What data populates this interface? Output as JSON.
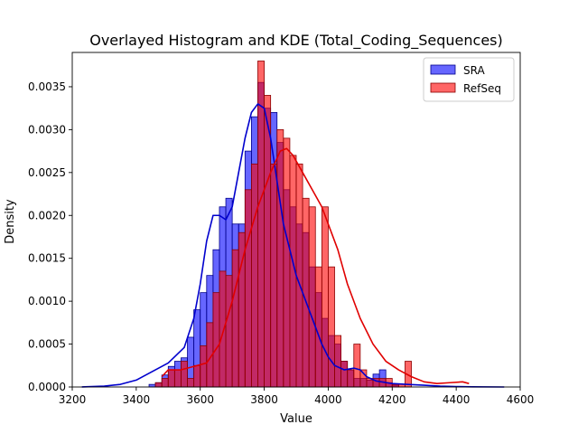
{
  "chart_data": {
    "type": "histogram",
    "title": "Overlayed Histogram and KDE (Total_Coding_Sequences)",
    "xlabel": "Value",
    "ylabel": "Density",
    "xlim": [
      3200,
      4600
    ],
    "ylim": [
      0,
      0.0039
    ],
    "xticks": [
      3200,
      3400,
      3600,
      3800,
      4000,
      4200,
      4400,
      4600
    ],
    "yticks": [
      0.0,
      0.0005,
      0.001,
      0.0015,
      0.002,
      0.0025,
      0.003
    ],
    "ytick_labels": [
      "0.0000",
      "0.0005",
      "0.0010",
      "0.0015",
      "0.0020",
      "0.0025",
      "0.0030",
      "0.0035"
    ],
    "yticks_all": [
      0.0,
      0.0005,
      0.001,
      0.0015,
      0.002,
      0.0025,
      0.003,
      0.0035
    ],
    "legend_position": "top-right",
    "series": [
      {
        "name": "SRA",
        "color": "#0000ff",
        "edge_color": "#00008b",
        "kde_color": "#0000cd",
        "bin_start": 3440,
        "bin_width": 20,
        "densities": [
          3e-05,
          5e-05,
          0.00014,
          0.00024,
          0.0003,
          0.00034,
          0.00058,
          0.0009,
          0.0011,
          0.0013,
          0.0016,
          0.0021,
          0.0022,
          0.0019,
          0.0019,
          0.00275,
          0.00315,
          0.00355,
          0.00325,
          0.0032,
          0.00285,
          0.0023,
          0.0021,
          0.0019,
          0.0018,
          0.0014,
          0.0011,
          0.0008,
          0.0006,
          0.0005,
          0.0003,
          0.0002,
          0.0001,
          0.0001,
          8e-05,
          0.00015,
          0.0002,
          5e-05,
          2e-05
        ],
        "kde": {
          "x": [
            3230,
            3300,
            3350,
            3400,
            3450,
            3500,
            3550,
            3580,
            3600,
            3620,
            3640,
            3660,
            3680,
            3700,
            3720,
            3740,
            3760,
            3780,
            3800,
            3820,
            3840,
            3860,
            3880,
            3900,
            3920,
            3940,
            3960,
            3980,
            4000,
            4020,
            4050,
            4080,
            4100,
            4120,
            4150,
            4200,
            4250,
            4300,
            4350,
            4400,
            4450,
            4550
          ],
          "y": [
            1e-06,
            1e-05,
            3e-05,
            8e-05,
            0.00018,
            0.00028,
            0.00046,
            0.0008,
            0.0012,
            0.0017,
            0.002,
            0.002,
            0.00195,
            0.0021,
            0.0025,
            0.0029,
            0.0032,
            0.0033,
            0.00325,
            0.0029,
            0.0024,
            0.0019,
            0.0016,
            0.0013,
            0.0011,
            0.0009,
            0.0007,
            0.0005,
            0.00035,
            0.00025,
            0.0002,
            0.00022,
            0.0002,
            0.00012,
            7e-05,
            4e-05,
            3e-05,
            2e-05,
            1e-05,
            5e-06,
            2e-06,
            0.0
          ]
        }
      },
      {
        "name": "RefSeq",
        "color": "#ff0000",
        "edge_color": "#8b0000",
        "kde_color": "#e00000",
        "bin_start": 3460,
        "bin_width": 20,
        "densities": [
          5e-05,
          0.0001,
          0.0002,
          0.0002,
          0.0003,
          0.0001,
          0.00025,
          0.00048,
          0.00075,
          0.0011,
          0.00135,
          0.0013,
          0.0016,
          0.0018,
          0.0023,
          0.0026,
          0.0038,
          0.0034,
          0.0026,
          0.003,
          0.0029,
          0.0027,
          0.0026,
          0.0022,
          0.0021,
          0.0014,
          0.0021,
          0.0014,
          0.0006,
          0.0003,
          0.0002,
          0.0005,
          0.0002,
          0.0001,
          0.0001,
          0.0001,
          0.0001,
          3e-05,
          3e-05,
          0.0003
        ],
        "kde": {
          "x": [
            3480,
            3500,
            3540,
            3580,
            3620,
            3660,
            3700,
            3740,
            3780,
            3820,
            3850,
            3870,
            3890,
            3920,
            3950,
            3980,
            4000,
            4030,
            4060,
            4100,
            4140,
            4180,
            4220,
            4260,
            4300,
            4340,
            4380,
            4420,
            4440
          ],
          "y": [
            0.00012,
            0.0002,
            0.0002,
            0.00024,
            0.00028,
            0.0005,
            0.001,
            0.0016,
            0.0021,
            0.0025,
            0.00275,
            0.00278,
            0.0027,
            0.0025,
            0.0023,
            0.0021,
            0.0019,
            0.0016,
            0.0012,
            0.0008,
            0.0005,
            0.0003,
            0.0002,
            0.00012,
            6e-05,
            4e-05,
            5e-05,
            6e-05,
            4e-05
          ]
        }
      }
    ]
  }
}
